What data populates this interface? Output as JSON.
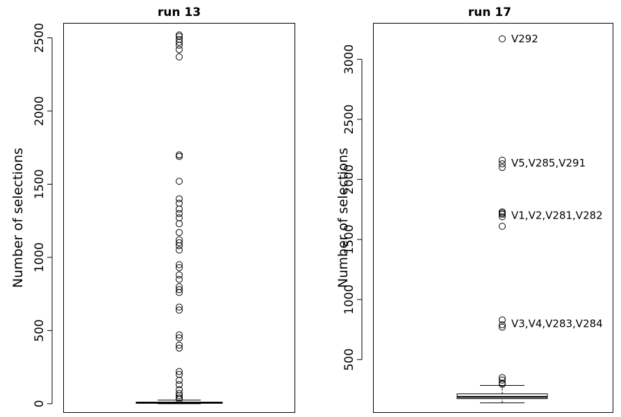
{
  "chart_data": [
    {
      "type": "box",
      "title": "run 13",
      "ylabel": "Number of selections",
      "ylim": [
        -60,
        2600
      ],
      "yticks": [
        0,
        500,
        1000,
        1500,
        2000,
        2500
      ],
      "box": {
        "whisker_low": 0,
        "q1": 3,
        "median": 7,
        "q3": 11,
        "whisker_high": 25
      },
      "outliers": [
        30,
        40,
        55,
        70,
        95,
        130,
        160,
        200,
        220,
        380,
        400,
        450,
        470,
        640,
        660,
        760,
        780,
        800,
        850,
        880,
        930,
        950,
        1050,
        1080,
        1100,
        1120,
        1170,
        1230,
        1270,
        1300,
        1330,
        1370,
        1400,
        1520,
        1690,
        1700,
        2370,
        2420,
        2450,
        2470,
        2490,
        2510,
        2520
      ],
      "annotations": []
    },
    {
      "type": "box",
      "title": "run 17",
      "ylabel": "Number of selections",
      "ylim": [
        60,
        3300
      ],
      "yticks": [
        500,
        1000,
        1500,
        2000,
        2500,
        3000
      ],
      "box": {
        "whisker_low": 140,
        "q1": 175,
        "median": 190,
        "q3": 215,
        "whisker_high": 285
      },
      "outliers": [
        295,
        305,
        330,
        350,
        770,
        790,
        830,
        1610,
        1690,
        1710,
        1720,
        1730,
        2100,
        2130,
        2160,
        3170
      ],
      "annotations": [
        {
          "y": 3170,
          "text": "V292"
        },
        {
          "y": 2135,
          "text": "V5,V285,V291"
        },
        {
          "y": 1700,
          "text": "V1,V2,V281,V282"
        },
        {
          "y": 800,
          "text": "V3,V4,V283,V284"
        }
      ]
    }
  ]
}
